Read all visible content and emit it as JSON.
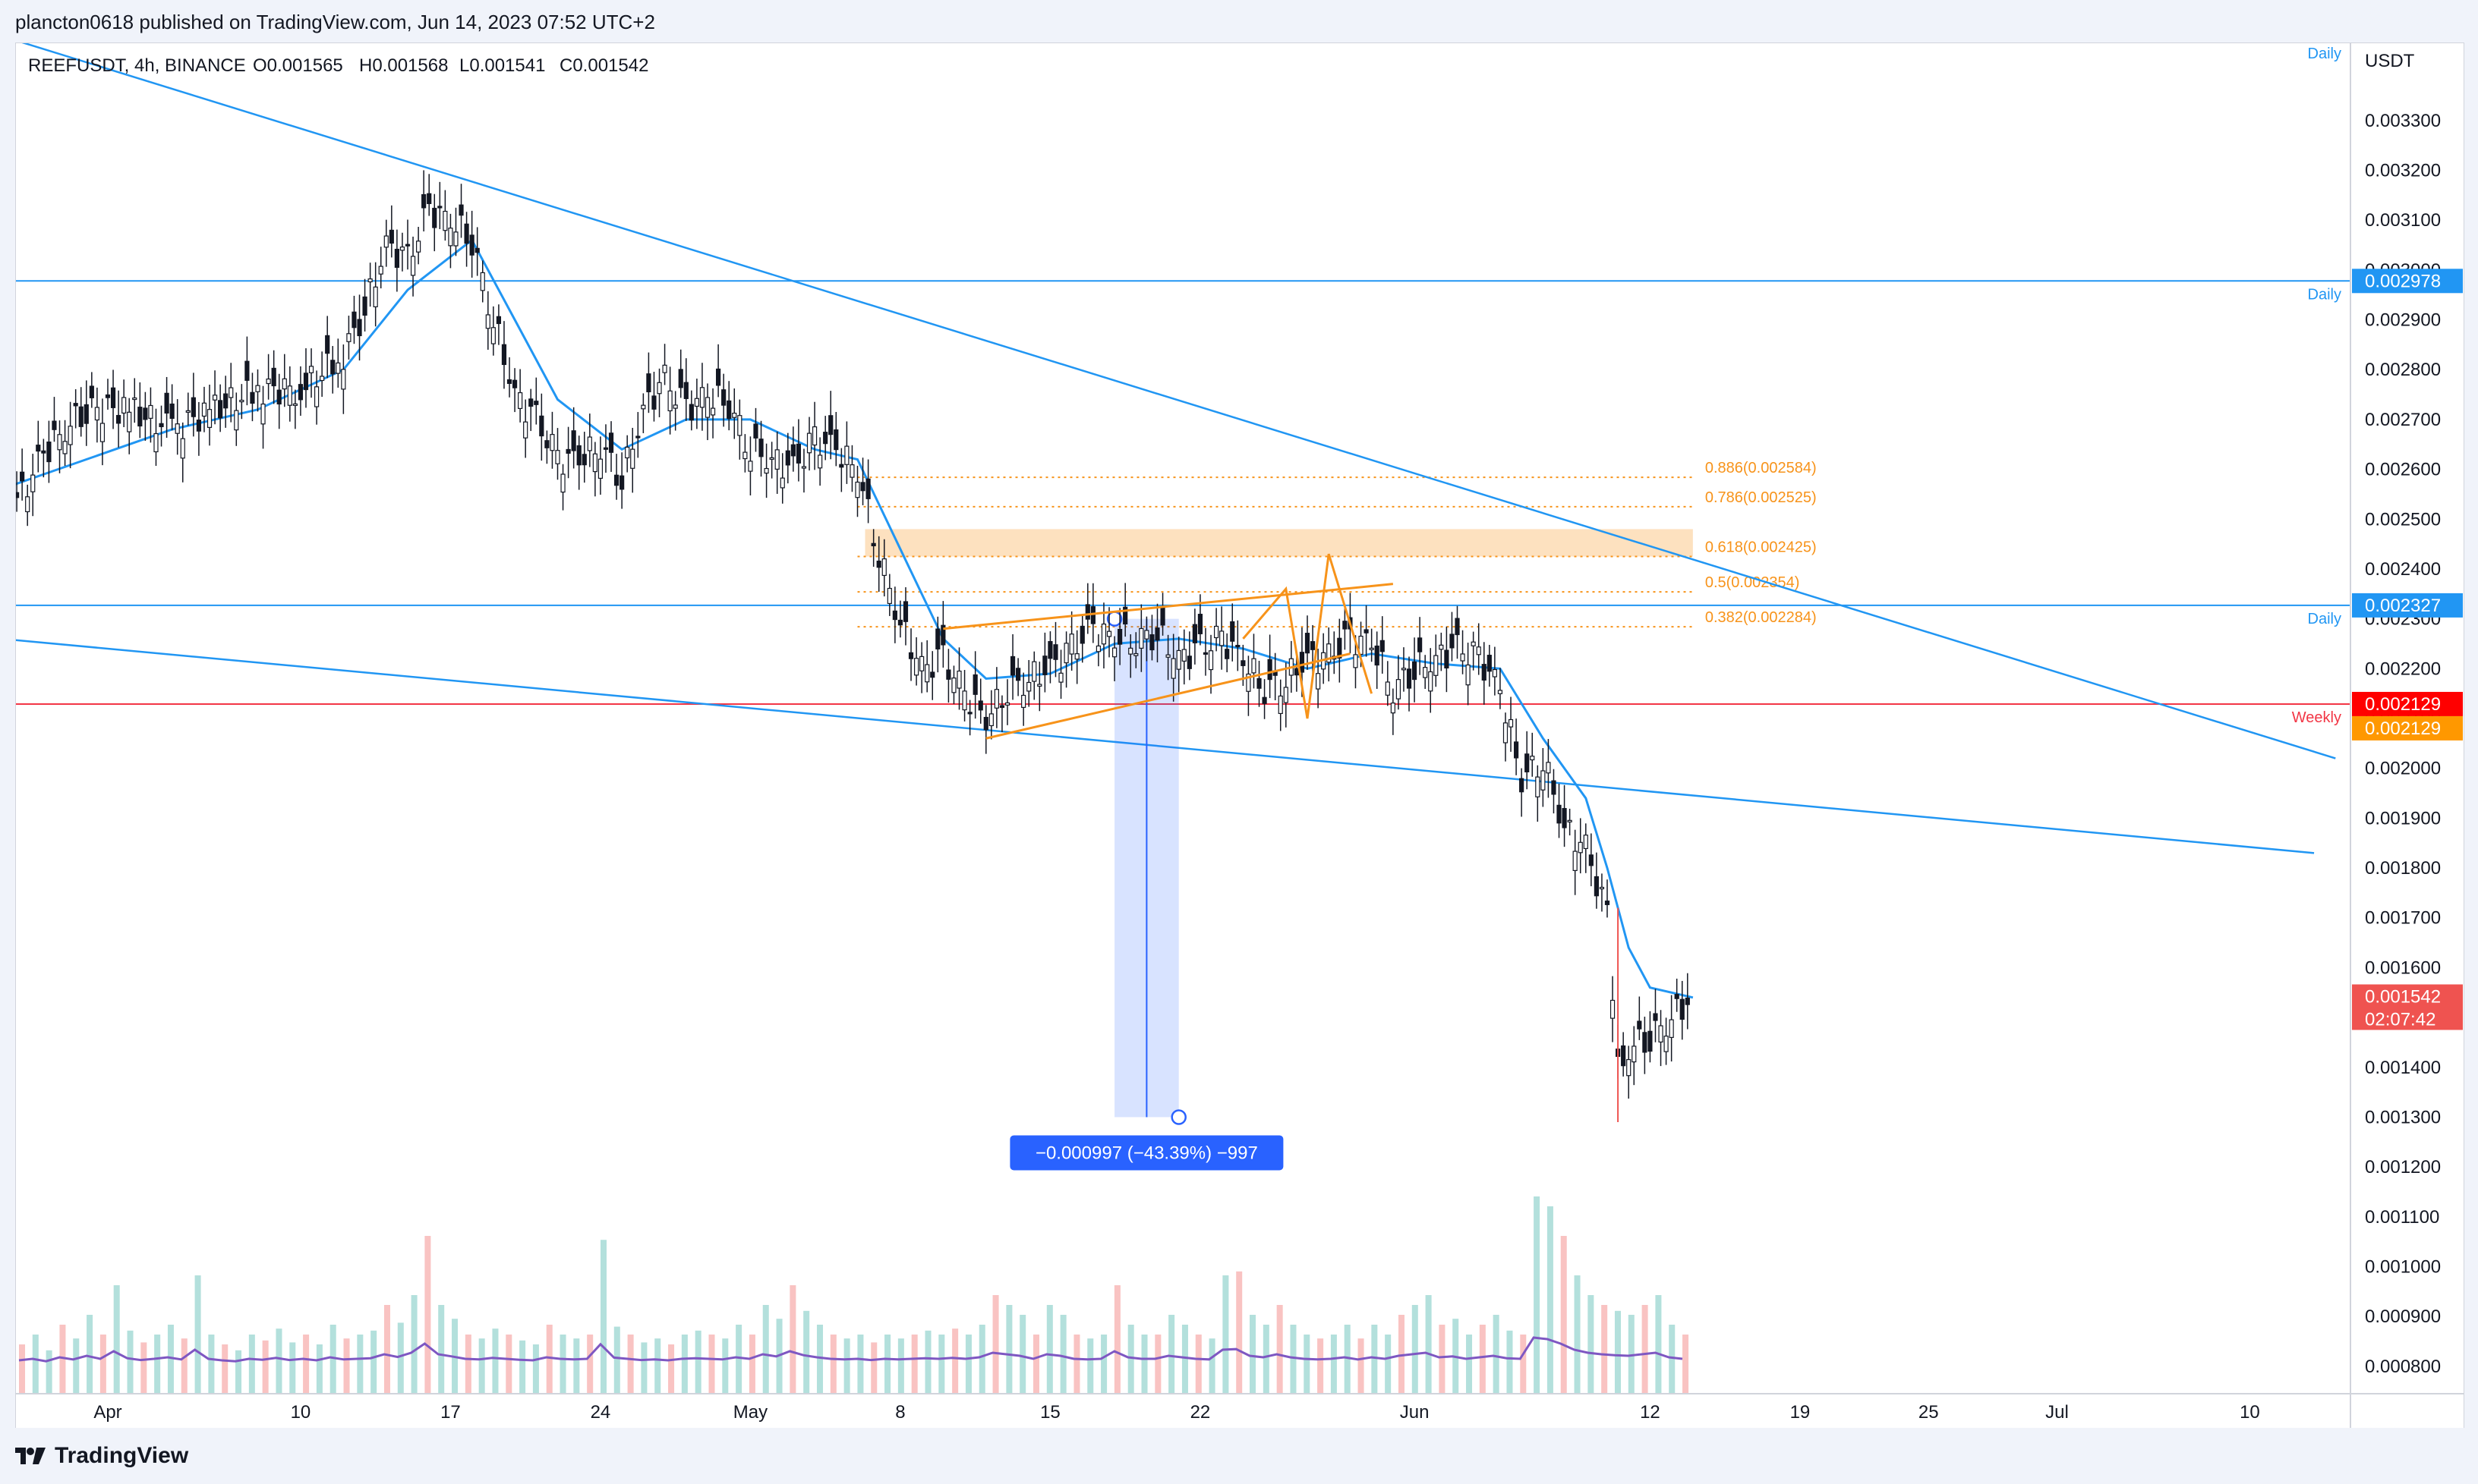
{
  "header": {
    "published": "plancton0618 published on TradingView.com, Jun 14, 2023 07:52 UTC+2"
  },
  "legend": {
    "symbol": "REEFUSDT, 4h, BINANCE",
    "open": "O0.001565",
    "high": "H0.001568",
    "low": "L0.001541",
    "close": "C0.001542"
  },
  "footer": {
    "brand": "TradingView"
  },
  "colors": {
    "up": "#26a69a",
    "down": "#ef5350",
    "candle": "#131722",
    "ma": "#2196f3",
    "trend": "#2196f3",
    "fib": "#f7931a",
    "weekly": "#f23645",
    "measure": "#2962ff"
  },
  "chart_data": {
    "type": "line",
    "price_axis": {
      "unit": "USDT",
      "ticks": [
        "0.003300",
        "0.003200",
        "0.003100",
        "0.003000",
        "0.002900",
        "0.002800",
        "0.002700",
        "0.002600",
        "0.002500",
        "0.002400",
        "0.002300",
        "0.002200",
        "0.002100",
        "0.002000",
        "0.001900",
        "0.001800",
        "0.001700",
        "0.001600",
        "0.001500",
        "0.001400",
        "0.001300",
        "0.001200",
        "0.001100",
        "0.001000",
        "0.000900",
        "0.000800"
      ],
      "ylim": [
        0.000745,
        0.003455
      ]
    },
    "time_axis": {
      "ticks": [
        "Apr",
        "10",
        "17",
        "24",
        "May",
        "8",
        "15",
        "22",
        "Jun",
        "12",
        "19",
        "25",
        "Jul",
        "10"
      ]
    },
    "price_series": {
      "name": "REEFUSDT close",
      "points": [
        [
          "2023-03-27",
          0.00242
        ],
        [
          "2023-03-28",
          0.00255
        ],
        [
          "2023-03-29",
          0.00263
        ],
        [
          "2023-03-30",
          0.00268
        ],
        [
          "2023-03-31",
          0.00272
        ],
        [
          "2023-04-02",
          0.00272
        ],
        [
          "2023-04-04",
          0.00268
        ],
        [
          "2023-04-06",
          0.00272
        ],
        [
          "2023-04-08",
          0.00276
        ],
        [
          "2023-04-10",
          0.00276
        ],
        [
          "2023-04-12",
          0.00283
        ],
        [
          "2023-04-13",
          0.00292
        ],
        [
          "2023-04-14",
          0.00305
        ],
        [
          "2023-04-15",
          0.00302
        ],
        [
          "2023-04-16",
          0.00312
        ],
        [
          "2023-04-17",
          0.0031
        ],
        [
          "2023-04-18",
          0.00306
        ],
        [
          "2023-04-19",
          0.0029
        ],
        [
          "2023-04-20",
          0.00275
        ],
        [
          "2023-04-21",
          0.0027
        ],
        [
          "2023-04-22",
          0.00262
        ],
        [
          "2023-04-23",
          0.00262
        ],
        [
          "2023-04-24",
          0.00265
        ],
        [
          "2023-04-25",
          0.00258
        ],
        [
          "2023-04-26",
          0.00272
        ],
        [
          "2023-04-27",
          0.00278
        ],
        [
          "2023-04-28",
          0.00272
        ],
        [
          "2023-04-29",
          0.00275
        ],
        [
          "2023-04-30",
          0.00273
        ],
        [
          "2023-05-01",
          0.00264
        ],
        [
          "2023-05-02",
          0.00262
        ],
        [
          "2023-05-03",
          0.0026
        ],
        [
          "2023-05-04",
          0.00266
        ],
        [
          "2023-05-05",
          0.00264
        ],
        [
          "2023-05-06",
          0.0026
        ],
        [
          "2023-05-07",
          0.00243
        ],
        [
          "2023-05-08",
          0.00229
        ],
        [
          "2023-05-09",
          0.0022
        ],
        [
          "2023-05-10",
          0.00222
        ],
        [
          "2023-05-11",
          0.00215
        ],
        [
          "2023-05-12",
          0.0021
        ],
        [
          "2023-05-13",
          0.00216
        ],
        [
          "2023-05-14",
          0.00218
        ],
        [
          "2023-05-15",
          0.0022
        ],
        [
          "2023-05-16",
          0.00224
        ],
        [
          "2023-05-17",
          0.00228
        ],
        [
          "2023-05-18",
          0.00226
        ],
        [
          "2023-05-19",
          0.00226
        ],
        [
          "2023-05-20",
          0.00227
        ],
        [
          "2023-05-21",
          0.00222
        ],
        [
          "2023-05-22",
          0.00224
        ],
        [
          "2023-05-23",
          0.00226
        ],
        [
          "2023-05-24",
          0.00222
        ],
        [
          "2023-05-25",
          0.00216
        ],
        [
          "2023-05-26",
          0.00218
        ],
        [
          "2023-05-27",
          0.00222
        ],
        [
          "2023-05-28",
          0.00222
        ],
        [
          "2023-05-29",
          0.00226
        ],
        [
          "2023-05-30",
          0.00225
        ],
        [
          "2023-05-31",
          0.00216
        ],
        [
          "2023-06-01",
          0.0022
        ],
        [
          "2023-06-02",
          0.00222
        ],
        [
          "2023-06-03",
          0.00224
        ],
        [
          "2023-06-04",
          0.00222
        ],
        [
          "2023-06-05",
          0.00216
        ],
        [
          "2023-06-06",
          0.00198
        ],
        [
          "2023-06-07",
          0.00202
        ],
        [
          "2023-06-08",
          0.00188
        ],
        [
          "2023-06-09",
          0.00184
        ],
        [
          "2023-06-10",
          0.0017
        ],
        [
          "2023-06-10T12",
          0.00142
        ],
        [
          "2023-06-11",
          0.00144
        ],
        [
          "2023-06-12",
          0.00146
        ],
        [
          "2023-06-13",
          0.0015
        ],
        [
          "2023-06-14",
          0.00154
        ]
      ]
    },
    "ma_series": {
      "points": [
        [
          "2023-03-27",
          0.00256
        ],
        [
          "2023-03-31",
          0.00262
        ],
        [
          "2023-04-04",
          0.00268
        ],
        [
          "2023-04-08",
          0.00272
        ],
        [
          "2023-04-12",
          0.0028
        ],
        [
          "2023-04-15",
          0.00296
        ],
        [
          "2023-04-18",
          0.00306
        ],
        [
          "2023-04-20",
          0.0029
        ],
        [
          "2023-04-22",
          0.00274
        ],
        [
          "2023-04-25",
          0.00264
        ],
        [
          "2023-04-28",
          0.0027
        ],
        [
          "2023-05-01",
          0.0027
        ],
        [
          "2023-05-04",
          0.00264
        ],
        [
          "2023-05-06",
          0.00262
        ],
        [
          "2023-05-08",
          0.00244
        ],
        [
          "2023-05-10",
          0.00226
        ],
        [
          "2023-05-12",
          0.00218
        ],
        [
          "2023-05-15",
          0.00219
        ],
        [
          "2023-05-18",
          0.00225
        ],
        [
          "2023-05-21",
          0.00226
        ],
        [
          "2023-05-24",
          0.00224
        ],
        [
          "2023-05-27",
          0.0022
        ],
        [
          "2023-05-30",
          0.00223
        ],
        [
          "2023-06-02",
          0.00221
        ],
        [
          "2023-06-05",
          0.0022
        ],
        [
          "2023-06-07",
          0.00206
        ],
        [
          "2023-06-09",
          0.00194
        ],
        [
          "2023-06-10",
          0.0018
        ],
        [
          "2023-06-11",
          0.00164
        ],
        [
          "2023-06-12",
          0.00156
        ],
        [
          "2023-06-14",
          0.00154
        ]
      ]
    },
    "horizontal_lines": [
      {
        "price": 0.002978,
        "label": "0.002978",
        "tag": "Daily"
      },
      {
        "price": 0.002327,
        "label": "0.002327",
        "tag": "Daily"
      },
      {
        "price": 0.002129,
        "label": "0.002129",
        "tag": "Weekly"
      }
    ],
    "axis_badges": [
      {
        "price": 0.002129,
        "label": "0.002129"
      },
      {
        "price": 0.001542,
        "label": "0.001542",
        "sublabel": "02:07:42"
      }
    ],
    "top_tag": "Daily",
    "trendlines": [
      {
        "from": [
          "2023-03-27",
          0.00347
        ],
        "to": [
          "2023-07-14",
          0.00202
        ]
      },
      {
        "from": [
          "2023-03-27",
          0.00226
        ],
        "to": [
          "2023-07-13",
          0.00183
        ]
      }
    ],
    "fib_levels": [
      {
        "ratio": "0.886",
        "price": 0.002584,
        "label": "0.886(0.002584)"
      },
      {
        "ratio": "0.786",
        "price": 0.002525,
        "label": "0.786(0.002525)"
      },
      {
        "ratio": "0.618",
        "price": 0.002425,
        "label": "0.618(0.002425)"
      },
      {
        "ratio": "0.5",
        "price": 0.002354,
        "label": "0.5(0.002354)"
      },
      {
        "ratio": "0.382",
        "price": 0.002284,
        "label": "0.382(0.002284)"
      }
    ],
    "fib_zone": {
      "top": 0.00248,
      "bottom": 0.002425
    },
    "wedge": {
      "upper": [
        [
          "2023-05-10",
          0.00228
        ],
        [
          "2023-05-31",
          0.00237
        ]
      ],
      "lower": [
        [
          "2023-05-12",
          0.00206
        ],
        [
          "2023-05-29",
          0.00223
        ]
      ]
    },
    "harmonic_points": [
      [
        "2023-05-24",
        0.00226
      ],
      [
        "2023-05-26",
        0.00236
      ],
      [
        "2023-05-27",
        0.0021
      ],
      [
        "2023-05-28",
        0.00243
      ],
      [
        "2023-05-30",
        0.00215
      ]
    ],
    "measure": {
      "from": [
        "2023-05-18",
        0.0023
      ],
      "to": [
        "2023-05-21",
        0.0013
      ],
      "label": "−0.000997 (−43.39%) −997"
    },
    "volume_series": [
      0.25,
      0.3,
      0.22,
      0.35,
      0.28,
      0.4,
      0.3,
      0.55,
      0.32,
      0.26,
      0.3,
      0.35,
      0.28,
      0.6,
      0.3,
      0.25,
      0.22,
      0.3,
      0.27,
      0.33,
      0.26,
      0.3,
      0.25,
      0.35,
      0.28,
      0.3,
      0.32,
      0.45,
      0.36,
      0.5,
      0.8,
      0.45,
      0.38,
      0.3,
      0.28,
      0.33,
      0.3,
      0.27,
      0.25,
      0.35,
      0.3,
      0.28,
      0.3,
      0.78,
      0.34,
      0.3,
      0.26,
      0.28,
      0.25,
      0.3,
      0.32,
      0.3,
      0.28,
      0.35,
      0.3,
      0.45,
      0.38,
      0.55,
      0.42,
      0.35,
      0.3,
      0.28,
      0.3,
      0.26,
      0.3,
      0.28,
      0.3,
      0.32,
      0.3,
      0.33,
      0.3,
      0.35,
      0.5,
      0.45,
      0.4,
      0.3,
      0.45,
      0.4,
      0.3,
      0.28,
      0.3,
      0.55,
      0.35,
      0.3,
      0.3,
      0.4,
      0.35,
      0.3,
      0.28,
      0.6,
      0.62,
      0.4,
      0.35,
      0.45,
      0.35,
      0.3,
      0.28,
      0.3,
      0.35,
      0.28,
      0.35,
      0.3,
      0.4,
      0.45,
      0.5,
      0.35,
      0.38,
      0.3,
      0.35,
      0.4,
      0.32,
      0.3,
      1.0,
      0.95,
      0.8,
      0.6,
      0.5,
      0.45,
      0.42,
      0.4,
      0.45,
      0.5,
      0.35,
      0.3
    ]
  }
}
